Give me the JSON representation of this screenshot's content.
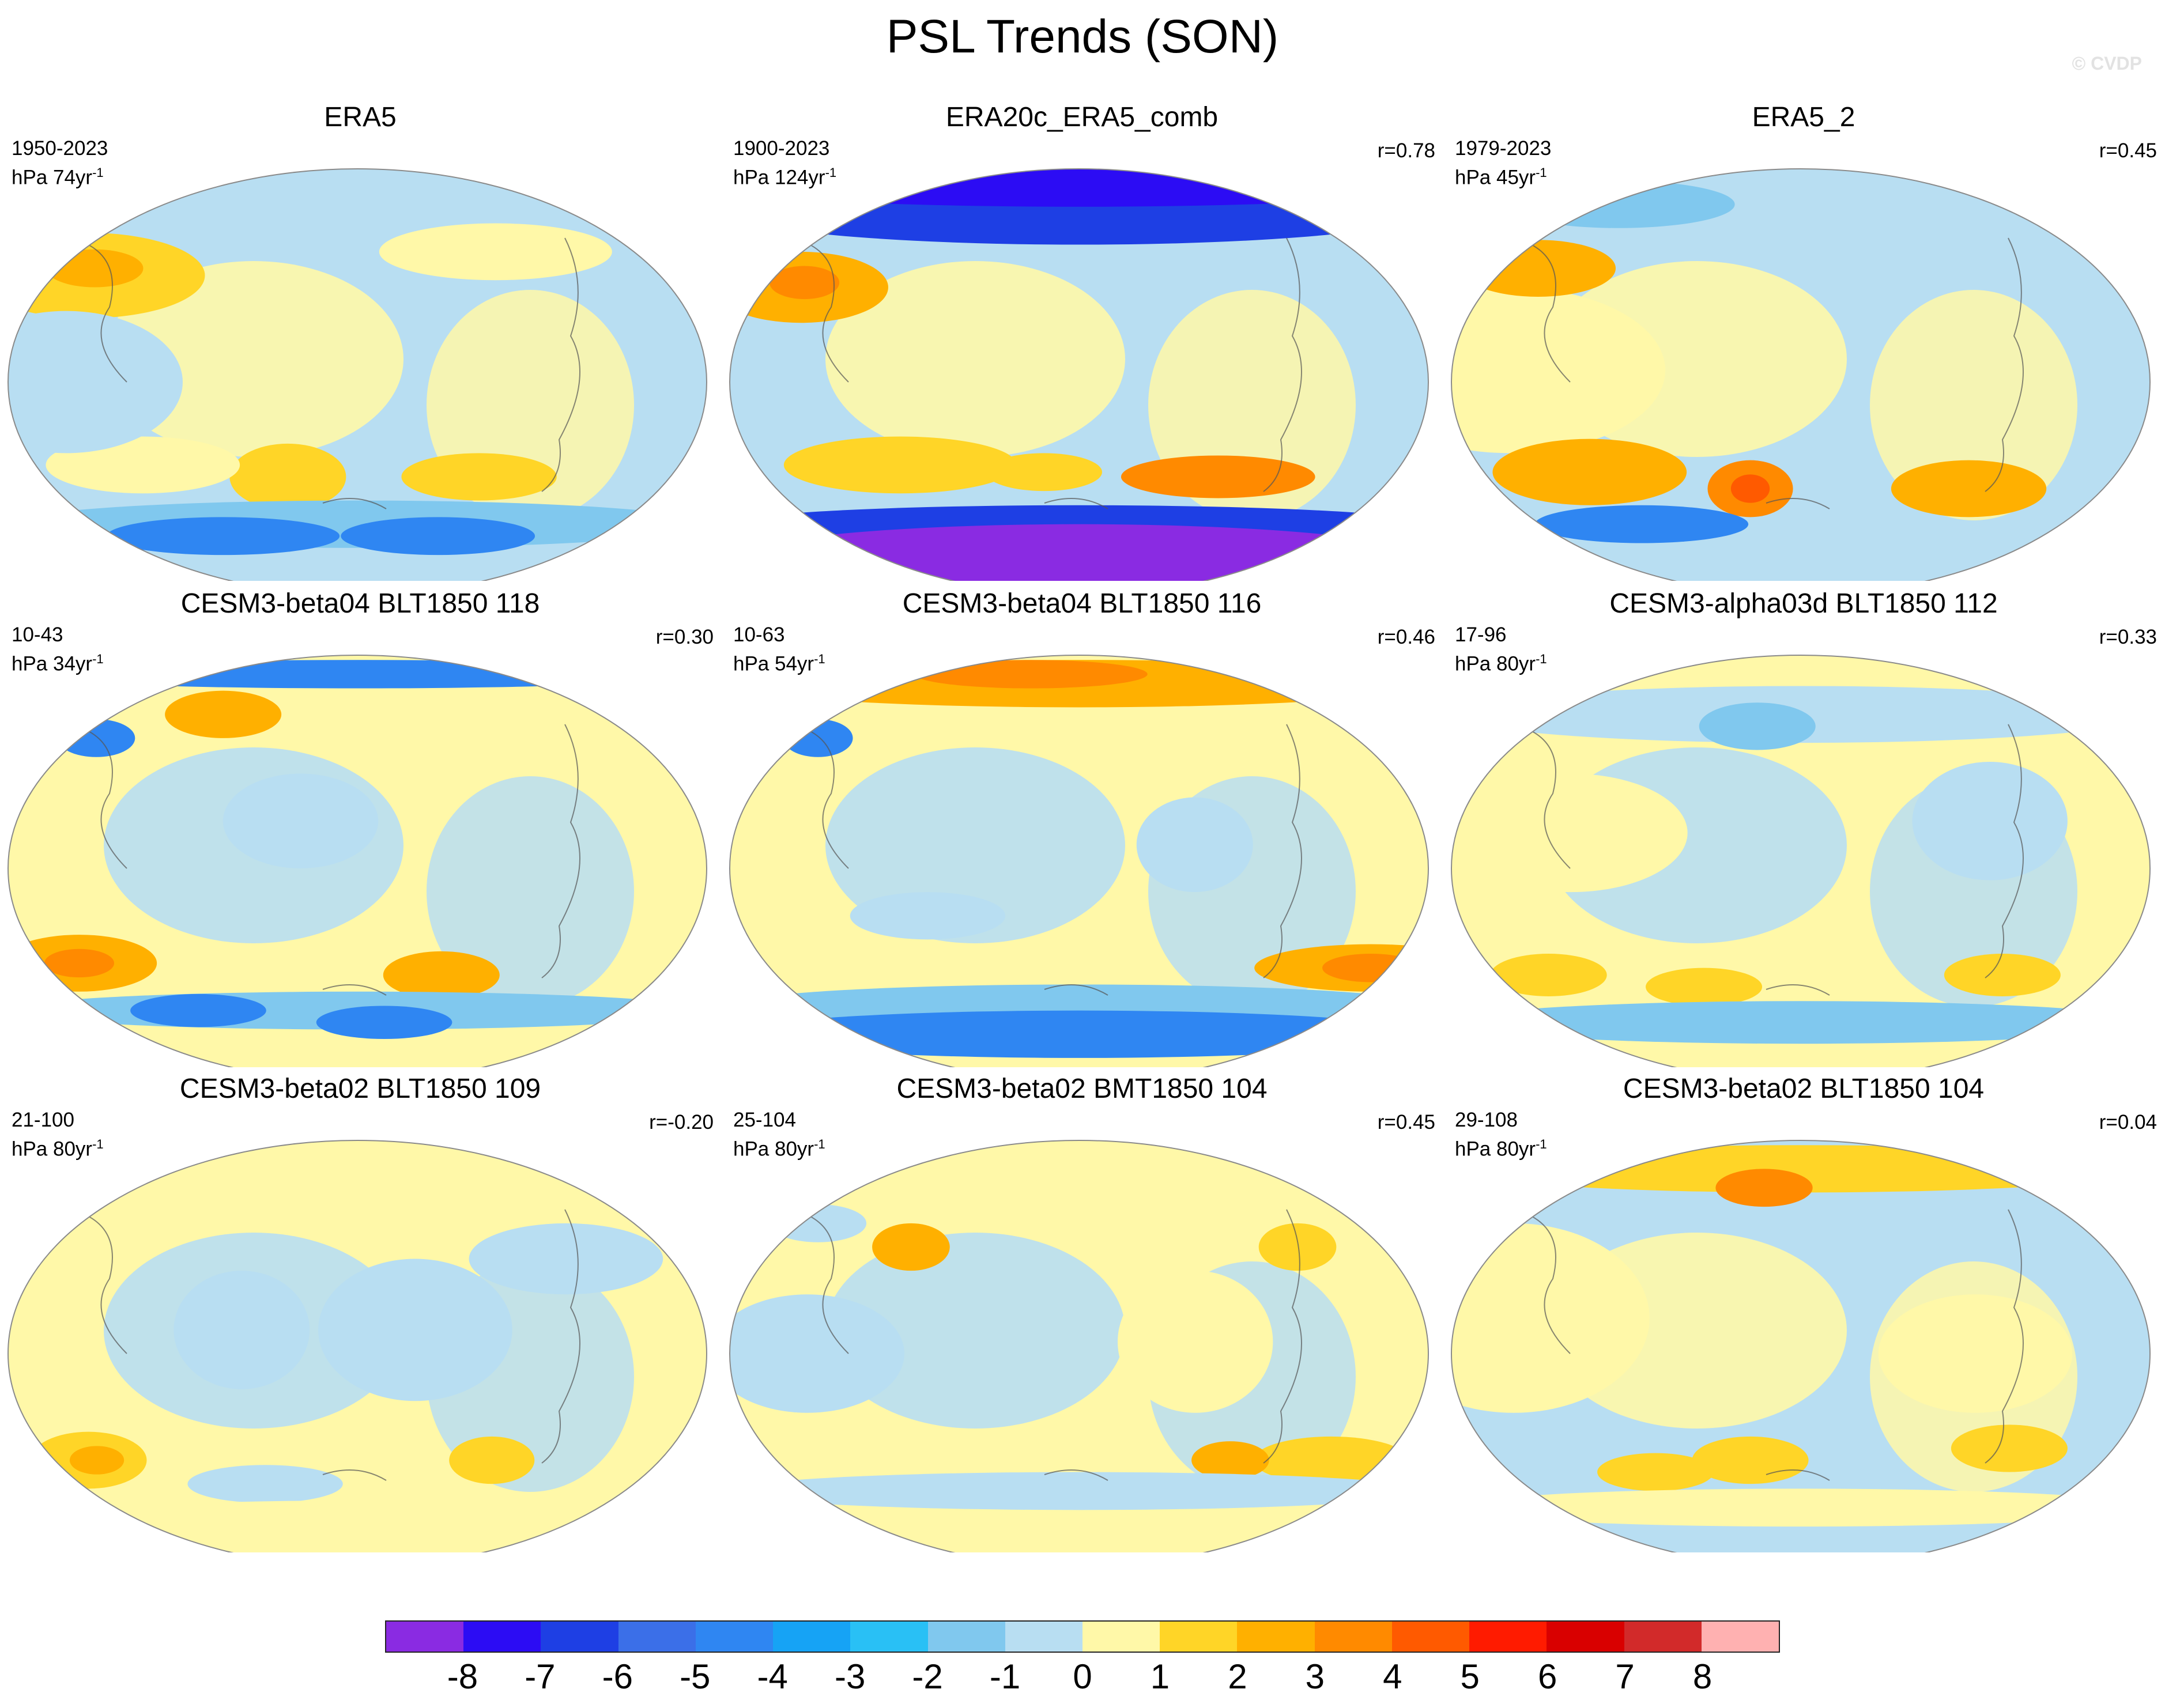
{
  "title": "PSL Trends (SON)",
  "watermark": "© CVDP",
  "colorbar": {
    "labels": [
      "-8",
      "-7",
      "-6",
      "-5",
      "-4",
      "-3",
      "-2",
      "-1",
      "0",
      "1",
      "2",
      "3",
      "4",
      "5",
      "6",
      "7",
      "8"
    ],
    "colors": [
      "#8a2be2",
      "#2c0cf4",
      "#1e3fe4",
      "#3b6fe8",
      "#2f86f2",
      "#16a3f5",
      "#29c0f5",
      "#80c8ee",
      "#b8def2",
      "#fff8a8",
      "#ffd527",
      "#ffb000",
      "#ff8a00",
      "#ff5a00",
      "#ff1b00",
      "#d90000",
      "#d22a2a",
      "#ffb1b1"
    ]
  },
  "chart_data": [
    {
      "type": "map",
      "title": "ERA5",
      "years": "1950-2023",
      "units_base": "hPa 74yr",
      "units_exp": "-1",
      "r": "",
      "palette": [
        "#b8def2",
        "#fff8a8",
        "#fff8a8",
        "#ffd527",
        "#ffb000",
        "#b8def2",
        "#80c8ee",
        "#2f86f2",
        "#1e3fe4"
      ],
      "blobs": [
        {
          "lon": -160,
          "lat": 45,
          "rx": 60,
          "ry": 18,
          "level": 3
        },
        {
          "lon": -160,
          "lat": 48,
          "rx": 25,
          "ry": 8,
          "level": 4
        },
        {
          "lon": 70,
          "lat": -40,
          "rx": 40,
          "ry": 10,
          "level": 3
        },
        {
          "lon": -40,
          "lat": -40,
          "rx": 30,
          "ry": 14,
          "level": 3
        },
        {
          "lon": -120,
          "lat": -35,
          "rx": 50,
          "ry": 12,
          "level": 2
        },
        {
          "lon": -150,
          "lat": 0,
          "rx": 60,
          "ry": 30,
          "level": 0
        },
        {
          "lon": 90,
          "lat": 55,
          "rx": 60,
          "ry": 12,
          "level": 2
        },
        {
          "lon": 0,
          "lat": -60,
          "rx": 180,
          "ry": 10,
          "level": 6
        },
        {
          "lon": -100,
          "lat": -65,
          "rx": 60,
          "ry": 8,
          "level": 7
        },
        {
          "lon": 60,
          "lat": -65,
          "rx": 50,
          "ry": 8,
          "level": 7
        }
      ]
    },
    {
      "type": "map",
      "title": "ERA20c_ERA5_comb",
      "years": "1900-2023",
      "units_base": "hPa 124yr",
      "units_exp": "-1",
      "r": "r=0.78",
      "palette": [
        "#b8def2",
        "#fff8a8",
        "#ffd527",
        "#ffb000",
        "#ff8a00",
        "#2f86f2",
        "#1e3fe4",
        "#2c0cf4",
        "#8a2be2"
      ],
      "blobs": [
        {
          "lon": 0,
          "lat": 72,
          "rx": 180,
          "ry": 14,
          "level": 6
        },
        {
          "lon": 0,
          "lat": 82,
          "rx": 180,
          "ry": 8,
          "level": 7
        },
        {
          "lon": -160,
          "lat": 40,
          "rx": 45,
          "ry": 15,
          "level": 3
        },
        {
          "lon": -160,
          "lat": 42,
          "rx": 18,
          "ry": 7,
          "level": 4
        },
        {
          "lon": 80,
          "lat": -40,
          "rx": 50,
          "ry": 9,
          "level": 4
        },
        {
          "lon": -100,
          "lat": -35,
          "rx": 60,
          "ry": 12,
          "level": 2
        },
        {
          "lon": -20,
          "lat": -38,
          "rx": 30,
          "ry": 8,
          "level": 2
        },
        {
          "lon": 0,
          "lat": -60,
          "rx": 180,
          "ry": 8,
          "level": 6
        },
        {
          "lon": 0,
          "lat": -75,
          "rx": 180,
          "ry": 15,
          "level": 8
        }
      ]
    },
    {
      "type": "map",
      "title": "ERA5_2",
      "years": "1979-2023",
      "units_base": "hPa 45yr",
      "units_exp": "-1",
      "r": "r=0.45",
      "palette": [
        "#b8def2",
        "#fff8a8",
        "#ffd527",
        "#ffb000",
        "#ff8a00",
        "#ff5a00",
        "#80c8ee",
        "#2f86f2",
        "#1e3fe4"
      ],
      "blobs": [
        {
          "lon": -150,
          "lat": 5,
          "rx": 80,
          "ry": 35,
          "level": 1
        },
        {
          "lon": -160,
          "lat": 48,
          "rx": 40,
          "ry": 12,
          "level": 3
        },
        {
          "lon": -120,
          "lat": -38,
          "rx": 50,
          "ry": 14,
          "level": 3
        },
        {
          "lon": -30,
          "lat": -45,
          "rx": 22,
          "ry": 12,
          "level": 4
        },
        {
          "lon": -30,
          "lat": -45,
          "rx": 10,
          "ry": 6,
          "level": 5
        },
        {
          "lon": 100,
          "lat": -45,
          "rx": 40,
          "ry": 12,
          "level": 3
        },
        {
          "lon": -110,
          "lat": -60,
          "rx": 55,
          "ry": 8,
          "level": 7
        },
        {
          "lon": -170,
          "lat": 75,
          "rx": 60,
          "ry": 10,
          "level": 6
        }
      ]
    },
    {
      "type": "map",
      "title": "CESM3-beta04 BLT1850 118",
      "years": "10-43",
      "units_base": "hPa 34yr",
      "units_exp": "-1",
      "r": "r=0.30",
      "palette": [
        "#fff8a8",
        "#b8def2",
        "#ffd527",
        "#ffb000",
        "#ff8a00",
        "#80c8ee",
        "#2f86f2",
        "#1e3fe4",
        "#ffd527"
      ],
      "blobs": [
        {
          "lon": -160,
          "lat": -40,
          "rx": 40,
          "ry": 12,
          "level": 3
        },
        {
          "lon": -160,
          "lat": -40,
          "rx": 18,
          "ry": 6,
          "level": 4
        },
        {
          "lon": 50,
          "lat": -45,
          "rx": 30,
          "ry": 10,
          "level": 3
        },
        {
          "lon": 0,
          "lat": -60,
          "rx": 180,
          "ry": 8,
          "level": 5
        },
        {
          "lon": -110,
          "lat": -60,
          "rx": 35,
          "ry": 7,
          "level": 6
        },
        {
          "lon": 20,
          "lat": -65,
          "rx": 35,
          "ry": 7,
          "level": 6
        },
        {
          "lon": -170,
          "lat": 55,
          "rx": 20,
          "ry": 8,
          "level": 6
        },
        {
          "lon": -100,
          "lat": 65,
          "rx": 30,
          "ry": 10,
          "level": 3
        },
        {
          "lon": 0,
          "lat": 82,
          "rx": 180,
          "ry": 6,
          "level": 6
        },
        {
          "lon": -30,
          "lat": 20,
          "rx": 40,
          "ry": 20,
          "level": 1
        }
      ]
    },
    {
      "type": "map",
      "title": "CESM3-beta04 BLT1850 116",
      "years": "10-63",
      "units_base": "hPa 54yr",
      "units_exp": "-1",
      "r": "r=0.46",
      "palette": [
        "#fff8a8",
        "#b8def2",
        "#ffd527",
        "#ffb000",
        "#ff8a00",
        "#80c8ee",
        "#2f86f2",
        "#1e3fe4",
        "#ffd527"
      ],
      "blobs": [
        {
          "lon": 0,
          "lat": 78,
          "rx": 180,
          "ry": 10,
          "level": 3
        },
        {
          "lon": -60,
          "lat": 82,
          "rx": 60,
          "ry": 6,
          "level": 4
        },
        {
          "lon": 170,
          "lat": -42,
          "rx": 60,
          "ry": 10,
          "level": 3
        },
        {
          "lon": 170,
          "lat": -42,
          "rx": 25,
          "ry": 6,
          "level": 4
        },
        {
          "lon": 0,
          "lat": -58,
          "rx": 180,
          "ry": 9,
          "level": 5
        },
        {
          "lon": 0,
          "lat": -70,
          "rx": 180,
          "ry": 10,
          "level": 6
        },
        {
          "lon": -170,
          "lat": 55,
          "rx": 18,
          "ry": 8,
          "level": 6
        },
        {
          "lon": -80,
          "lat": -20,
          "rx": 40,
          "ry": 10,
          "level": 1
        },
        {
          "lon": 60,
          "lat": 10,
          "rx": 30,
          "ry": 20,
          "level": 1
        }
      ]
    },
    {
      "type": "map",
      "title": "CESM3-alpha03d BLT1850 112",
      "years": "17-96",
      "units_base": "hPa 80yr",
      "units_exp": "-1",
      "r": "r=0.33",
      "palette": [
        "#fff8a8",
        "#b8def2",
        "#ffd527",
        "#ffb000",
        "#ff8a00",
        "#80c8ee",
        "#2f86f2",
        "#1e3fe4",
        "#ffd527"
      ],
      "blobs": [
        {
          "lon": 120,
          "lat": -45,
          "rx": 30,
          "ry": 9,
          "level": 2
        },
        {
          "lon": -150,
          "lat": -45,
          "rx": 30,
          "ry": 9,
          "level": 2
        },
        {
          "lon": -60,
          "lat": -50,
          "rx": 30,
          "ry": 8,
          "level": 2
        },
        {
          "lon": 0,
          "lat": -65,
          "rx": 180,
          "ry": 9,
          "level": 5
        },
        {
          "lon": 0,
          "lat": 65,
          "rx": 180,
          "ry": 12,
          "level": 1
        },
        {
          "lon": -30,
          "lat": 60,
          "rx": 30,
          "ry": 10,
          "level": 5
        },
        {
          "lon": 100,
          "lat": 20,
          "rx": 40,
          "ry": 25,
          "level": 1
        },
        {
          "lon": -120,
          "lat": 15,
          "rx": 60,
          "ry": 25,
          "level": 0
        }
      ]
    },
    {
      "type": "map",
      "title": "CESM3-beta02 BLT1850 109",
      "years": "21-100",
      "units_base": "hPa 80yr",
      "units_exp": "-1",
      "r": "r=-0.20",
      "palette": [
        "#fff8a8",
        "#b8def2",
        "#ffd527",
        "#ffb000",
        "#ff8a00",
        "#80c8ee",
        "#2f86f2",
        "#1e3fe4",
        "#ffd527"
      ],
      "blobs": [
        {
          "lon": -160,
          "lat": -45,
          "rx": 30,
          "ry": 12,
          "level": 2
        },
        {
          "lon": -155,
          "lat": -45,
          "rx": 14,
          "ry": 6,
          "level": 3
        },
        {
          "lon": 80,
          "lat": -45,
          "rx": 22,
          "ry": 10,
          "level": 2
        },
        {
          "lon": 30,
          "lat": 10,
          "rx": 50,
          "ry": 30,
          "level": 1
        },
        {
          "lon": -60,
          "lat": 10,
          "rx": 35,
          "ry": 25,
          "level": 1
        },
        {
          "lon": 120,
          "lat": 40,
          "rx": 50,
          "ry": 15,
          "level": 1
        },
        {
          "lon": -60,
          "lat": -55,
          "rx": 40,
          "ry": 8,
          "level": 1
        },
        {
          "lon": 0,
          "lat": -72,
          "rx": 180,
          "ry": 10,
          "level": 0
        }
      ]
    },
    {
      "type": "map",
      "title": "CESM3-beta02 BMT1850 104",
      "years": "25-104",
      "units_base": "hPa 80yr",
      "units_exp": "-1",
      "r": "r=0.45",
      "palette": [
        "#fff8a8",
        "#b8def2",
        "#ffd527",
        "#ffb000",
        "#ff8a00",
        "#80c8ee",
        "#2f86f2",
        "#1e3fe4",
        "#ffd527"
      ],
      "blobs": [
        {
          "lon": -100,
          "lat": 45,
          "rx": 20,
          "ry": 10,
          "level": 3
        },
        {
          "lon": 130,
          "lat": 45,
          "rx": 20,
          "ry": 10,
          "level": 2
        },
        {
          "lon": 150,
          "lat": -45,
          "rx": 40,
          "ry": 10,
          "level": 2
        },
        {
          "lon": 90,
          "lat": -45,
          "rx": 20,
          "ry": 8,
          "level": 3
        },
        {
          "lon": 0,
          "lat": -58,
          "rx": 180,
          "ry": 8,
          "level": 1
        },
        {
          "lon": -140,
          "lat": 0,
          "rx": 50,
          "ry": 25,
          "level": 1
        },
        {
          "lon": 60,
          "lat": 5,
          "rx": 40,
          "ry": 30,
          "level": 0
        },
        {
          "lon": -170,
          "lat": 55,
          "rx": 25,
          "ry": 8,
          "level": 1
        }
      ]
    },
    {
      "type": "map",
      "title": "CESM3-beta02 BLT1850 104",
      "years": "29-108",
      "units_base": "hPa 80yr",
      "units_exp": "-1",
      "r": "r=0.04",
      "palette": [
        "#b8def2",
        "#fff8a8",
        "#ffd527",
        "#ffb000",
        "#ff8a00",
        "#80c8ee",
        "#2f86f2",
        "#1e3fe4",
        "#ffd527"
      ],
      "blobs": [
        {
          "lon": 0,
          "lat": 78,
          "rx": 180,
          "ry": 10,
          "level": 2
        },
        {
          "lon": -30,
          "lat": 70,
          "rx": 25,
          "ry": 8,
          "level": 4
        },
        {
          "lon": -150,
          "lat": 15,
          "rx": 70,
          "ry": 40,
          "level": 1
        },
        {
          "lon": 90,
          "lat": 0,
          "rx": 50,
          "ry": 25,
          "level": 1
        },
        {
          "lon": -30,
          "lat": -45,
          "rx": 30,
          "ry": 10,
          "level": 2
        },
        {
          "lon": 120,
          "lat": -40,
          "rx": 30,
          "ry": 10,
          "level": 2
        },
        {
          "lon": -90,
          "lat": -50,
          "rx": 30,
          "ry": 8,
          "level": 2
        },
        {
          "lon": 0,
          "lat": -65,
          "rx": 180,
          "ry": 8,
          "level": 1
        }
      ]
    }
  ]
}
